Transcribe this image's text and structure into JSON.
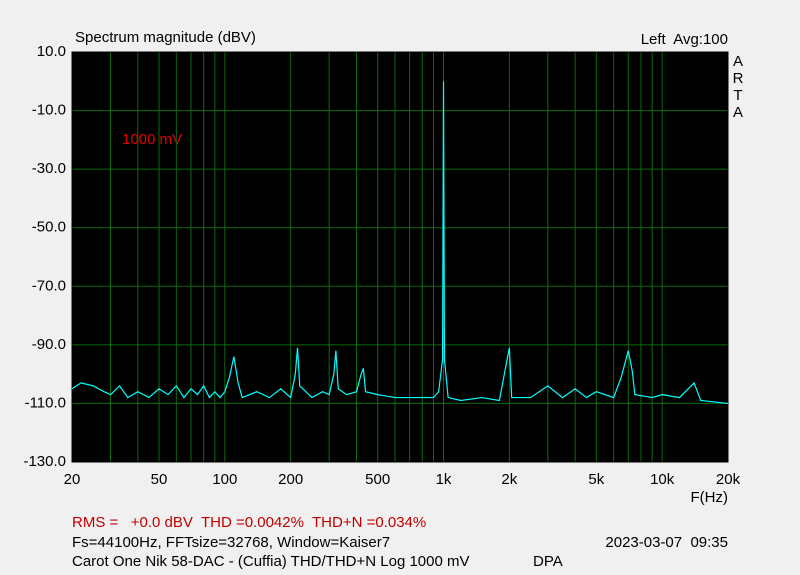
{
  "chart_data": {
    "type": "line",
    "title": "Spectrum magnitude (dBV)",
    "channel_info": "Left  Avg:100",
    "brand": "ARTA",
    "annotation": "1000 mV",
    "x_label": "F(Hz)",
    "x_scale": "log",
    "grid": true,
    "xlim": [
      20,
      20000
    ],
    "ylim": [
      -130,
      10
    ],
    "xticks": [
      20,
      50,
      100,
      200,
      500,
      {
        "value": 1000,
        "label": "1k"
      },
      {
        "value": 2000,
        "label": "2k"
      },
      {
        "value": 5000,
        "label": "5k"
      },
      {
        "value": 10000,
        "label": "10k"
      },
      {
        "value": 20000,
        "label": "20k"
      }
    ],
    "minor_xticks": [
      30,
      40,
      60,
      70,
      80,
      90,
      300,
      400,
      600,
      700,
      800,
      900,
      3000,
      4000,
      6000,
      7000,
      8000,
      9000
    ],
    "yticks": [
      {
        "value": -130,
        "label": "-130.0"
      },
      {
        "value": -110,
        "label": "-110.0"
      },
      {
        "value": -90,
        "label": "-90.0"
      },
      {
        "value": -70,
        "label": "-70.0"
      },
      {
        "value": -50,
        "label": "-50.0"
      },
      {
        "value": -30,
        "label": "-30.0"
      },
      {
        "value": -10,
        "label": "-10.0"
      },
      {
        "value": 10,
        "label": "10.0"
      }
    ],
    "x": [
      20,
      22,
      25,
      28,
      30,
      33,
      36,
      40,
      45,
      50,
      55,
      60,
      65,
      70,
      75,
      80,
      85,
      90,
      95,
      100,
      105,
      110,
      115,
      120,
      140,
      160,
      180,
      200,
      210,
      215,
      220,
      250,
      280,
      300,
      315,
      322,
      330,
      360,
      400,
      420,
      430,
      440,
      500,
      600,
      700,
      800,
      900,
      950,
      990,
      1000,
      1010,
      1050,
      1200,
      1500,
      1800,
      2000,
      2050,
      2500,
      3000,
      3500,
      4000,
      4500,
      5000,
      6000,
      6500,
      7000,
      7300,
      7500,
      9000,
      10000,
      12000,
      14000,
      15000,
      20000
    ],
    "series": [
      {
        "name": "Left",
        "color": "#00ffff",
        "values": [
          -105,
          -103,
          -104,
          -106,
          -107,
          -104,
          -108,
          -106,
          -108,
          -105,
          -107,
          -104,
          -108,
          -105,
          -107,
          -104,
          -108,
          -106,
          -108,
          -106,
          -101,
          -94,
          -103,
          -108,
          -106,
          -108,
          -105,
          -108,
          -100,
          -91,
          -104,
          -108,
          -106,
          -107,
          -100,
          -92,
          -105,
          -107,
          -106,
          -100,
          -98,
          -106,
          -107,
          -108,
          -108,
          -108,
          -108,
          -106,
          -95,
          0,
          -95,
          -108,
          -109,
          -108,
          -109,
          -91,
          -108,
          -108,
          -104,
          -108,
          -105,
          -108,
          -106,
          -108,
          -101,
          -92,
          -99,
          -107,
          -108,
          -107,
          -108,
          -103,
          -109,
          -110
        ]
      }
    ],
    "footer": {
      "measurements": "RMS =   +0.0 dBV  THD =0.0042%  THD+N =0.034%",
      "settings": "Fs=44100Hz, FFTsize=32768, Window=Kaiser7",
      "timestamp": "2023-03-07  09:35",
      "description": "Carot One Nik 58-DAC - (Cuffia) THD/THD+N Log 1000 mV",
      "suffix": "DPA"
    }
  }
}
